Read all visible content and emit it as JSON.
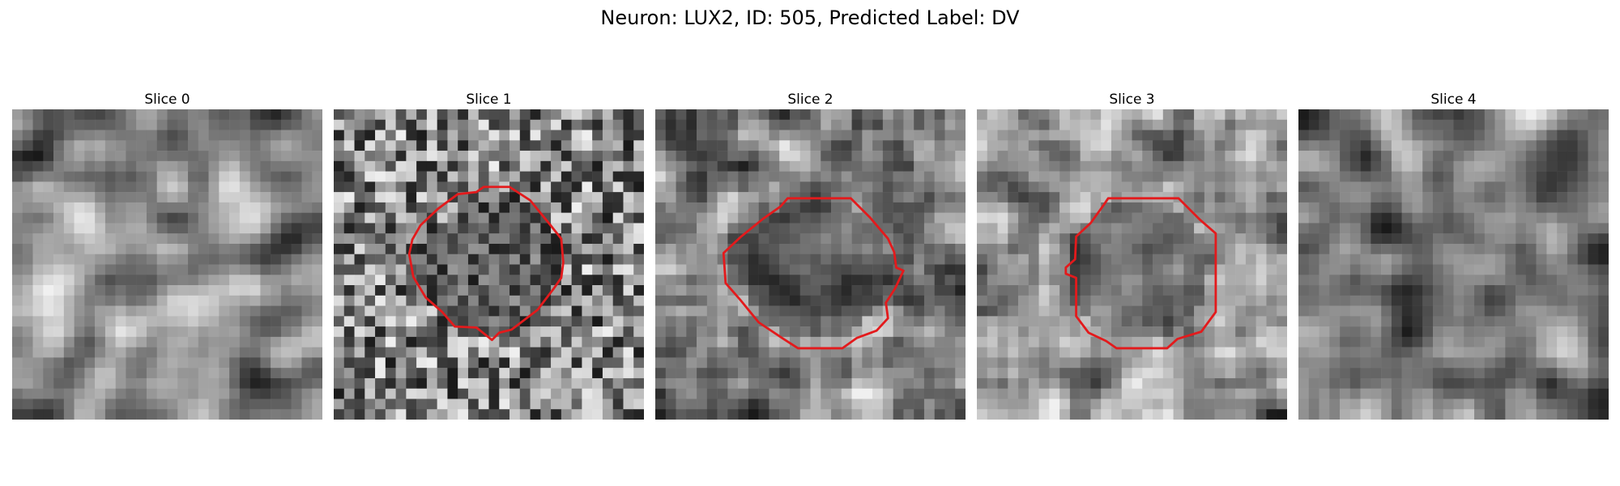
{
  "figure": {
    "title": "Neuron: LUX2, ID: 505, Predicted Label: DV"
  },
  "panels": [
    {
      "title": "Slice 0",
      "seed": 11,
      "blur": 2,
      "has_contour": false
    },
    {
      "title": "Slice 1",
      "seed": 23,
      "blur": 0,
      "has_contour": true
    },
    {
      "title": "Slice 2",
      "seed": 37,
      "blur": 1,
      "has_contour": true
    },
    {
      "title": "Slice 3",
      "seed": 41,
      "blur": 1,
      "has_contour": true
    },
    {
      "title": "Slice 4",
      "seed": 59,
      "blur": 2,
      "has_contour": false
    }
  ],
  "colors": {
    "contour": "#e31a1c",
    "background": "#ffffff"
  }
}
